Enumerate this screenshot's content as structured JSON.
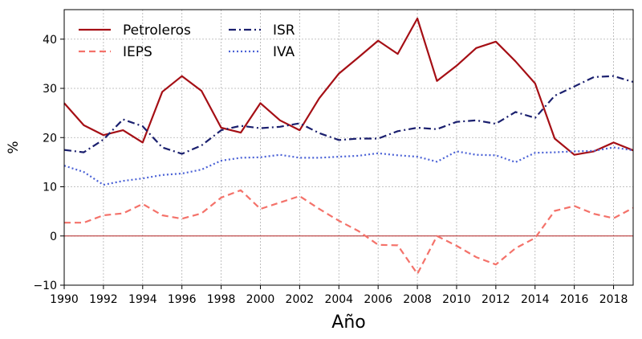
{
  "chart_data": {
    "type": "line",
    "title": "",
    "xlabel": "Año",
    "ylabel": "%",
    "xlim": [
      1990,
      2019
    ],
    "ylim": [
      -10,
      46
    ],
    "xticks": [
      1990,
      1992,
      1994,
      1996,
      1998,
      2000,
      2002,
      2004,
      2006,
      2008,
      2010,
      2012,
      2014,
      2016,
      2018
    ],
    "yticks": [
      -10,
      0,
      10,
      20,
      30,
      40
    ],
    "ytick_labels": [
      "−10",
      "0",
      "10",
      "20",
      "30",
      "40"
    ],
    "grid": true,
    "legend_position": "top-left",
    "reference_line": {
      "y": 0,
      "color": "#b22222"
    },
    "x": [
      1990,
      1991,
      1992,
      1993,
      1994,
      1995,
      1996,
      1997,
      1998,
      1999,
      2000,
      2001,
      2002,
      2003,
      2004,
      2005,
      2006,
      2007,
      2008,
      2009,
      2010,
      2011,
      2012,
      2013,
      2014,
      2015,
      2016,
      2017,
      2018,
      2019
    ],
    "series": [
      {
        "name": "Petroleros",
        "color": "#a50f15",
        "style": "solid",
        "values": [
          27.0,
          22.5,
          20.5,
          21.5,
          19.0,
          29.3,
          32.5,
          29.5,
          22.0,
          21.0,
          27.0,
          23.5,
          21.5,
          28.0,
          33.0,
          36.3,
          39.7,
          37.0,
          44.2,
          31.5,
          34.6,
          38.2,
          39.5,
          35.5,
          31.0,
          19.8,
          16.5,
          17.2,
          19.0,
          17.4
        ]
      },
      {
        "name": "IEPS",
        "color": "#f4726a",
        "style": "dashed",
        "values": [
          2.7,
          2.7,
          4.2,
          4.6,
          6.5,
          4.2,
          3.5,
          4.6,
          7.8,
          9.3,
          5.5,
          6.8,
          8.1,
          5.5,
          3.1,
          1.0,
          -1.8,
          -1.9,
          -7.7,
          0.0,
          -2.0,
          -4.3,
          -5.8,
          -2.5,
          -0.4,
          5.1,
          6.1,
          4.5,
          3.6,
          5.7
        ]
      },
      {
        "name": "ISR",
        "color": "#1a1f6e",
        "style": "dashdot",
        "values": [
          17.5,
          17.0,
          19.6,
          23.7,
          22.3,
          18.0,
          16.7,
          18.4,
          21.5,
          22.4,
          21.9,
          22.2,
          22.9,
          20.9,
          19.5,
          19.8,
          19.8,
          21.3,
          22.0,
          21.7,
          23.2,
          23.5,
          22.8,
          25.2,
          24.0,
          28.5,
          30.4,
          32.3,
          32.5,
          31.3
        ]
      },
      {
        "name": "IVA",
        "color": "#4b62d6",
        "style": "dotted",
        "values": [
          14.3,
          13.0,
          10.4,
          11.2,
          11.7,
          12.4,
          12.7,
          13.5,
          15.3,
          15.9,
          16.0,
          16.5,
          15.9,
          15.9,
          16.1,
          16.3,
          16.8,
          16.4,
          16.1,
          15.1,
          17.2,
          16.5,
          16.4,
          15.0,
          16.9,
          17.0,
          17.2,
          17.3,
          18.0,
          17.4
        ]
      }
    ]
  }
}
